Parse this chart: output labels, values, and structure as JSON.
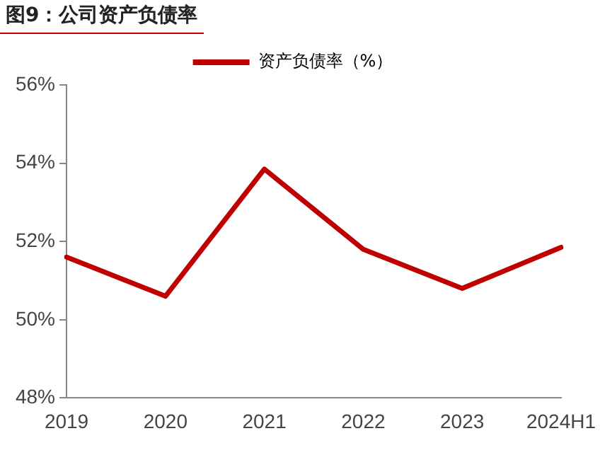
{
  "chart_data": {
    "type": "line",
    "title": "图9：公司资产负债率",
    "categories": [
      "2019",
      "2020",
      "2021",
      "2022",
      "2023",
      "2024H1"
    ],
    "series": [
      {
        "name": "资产负债率（%）",
        "color": "#c00000",
        "values": [
          51.6,
          50.6,
          53.85,
          51.8,
          50.8,
          51.85
        ]
      }
    ],
    "ylim": [
      48,
      56
    ],
    "yticks": [
      {
        "value": 48,
        "label": "48%"
      },
      {
        "value": 50,
        "label": "50%"
      },
      {
        "value": 52,
        "label": "52%"
      },
      {
        "value": 54,
        "label": "54%"
      },
      {
        "value": 56,
        "label": "56%"
      }
    ],
    "grid": false,
    "legend": "top",
    "marker": "none",
    "line_style": "solid"
  }
}
